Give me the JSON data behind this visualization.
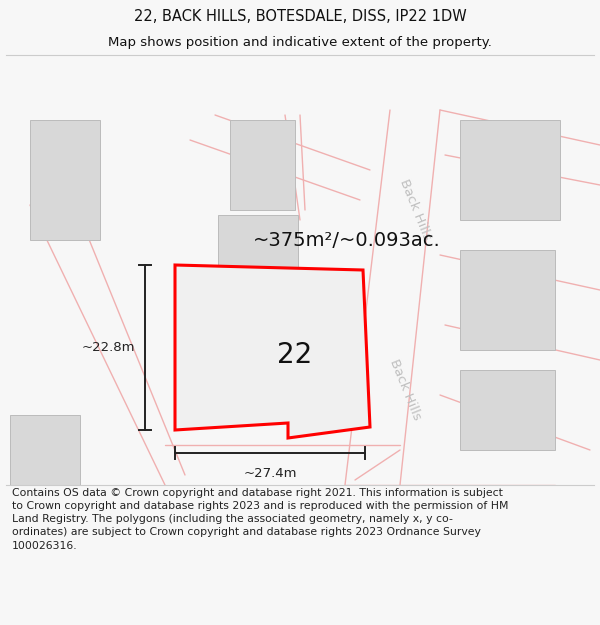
{
  "title_line1": "22, BACK HILLS, BOTESDALE, DISS, IP22 1DW",
  "title_line2": "Map shows position and indicative extent of the property.",
  "footer_text": "Contains OS data © Crown copyright and database right 2021. This information is subject to Crown copyright and database rights 2023 and is reproduced with the permission of HM Land Registry. The polygons (including the associated geometry, namely x, y co-ordinates) are subject to Crown copyright and database rights 2023 Ordnance Survey 100026316.",
  "area_label": "~375m²/~0.093ac.",
  "width_label": "~27.4m",
  "height_label": "~22.8m",
  "plot_number": "22",
  "bg_color": "#f7f7f7",
  "map_bg": "#ffffff",
  "plot_fill": "#ececec",
  "plot_edge": "#ff0000",
  "bldg_fill": "#d8d8d8",
  "bldg_edge": "#bbbbbb",
  "pink_line": "#f0b0b0",
  "street_color": "#c0c0c0",
  "dim_color": "#222222",
  "street_label": "Back Hills",
  "title_fontsize": 10.5,
  "subtitle_fontsize": 9.5,
  "footer_fontsize": 7.8,
  "area_fontsize": 14,
  "number_fontsize": 20,
  "dim_fontsize": 9.5,
  "street_fontsize": 9.5
}
